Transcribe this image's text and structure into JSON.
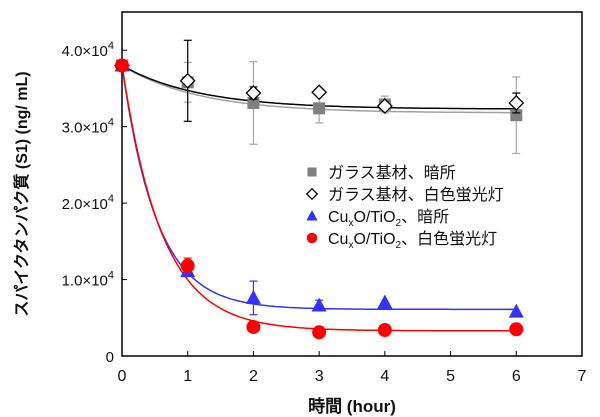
{
  "chart_data": {
    "type": "scatter",
    "xlabel": "時間 (hour)",
    "ylabel": "スパイクタンパク質 (S1)  (ng/ mL)",
    "xlim": [
      0,
      7
    ],
    "ylim": [
      0,
      45000
    ],
    "xticks": [
      0,
      1,
      2,
      3,
      4,
      5,
      6,
      7
    ],
    "yticks": [
      {
        "value": 0,
        "label": "0"
      },
      {
        "value": 10000,
        "label": "1.0×10",
        "exp": "4"
      },
      {
        "value": 20000,
        "label": "2.0×10",
        "exp": "4"
      },
      {
        "value": 30000,
        "label": "3.0×10",
        "exp": "4"
      },
      {
        "value": 40000,
        "label": "4.0×10",
        "exp": "4"
      }
    ],
    "grid": false,
    "legend_placement": "center-right",
    "series": [
      {
        "name": "ガラス基材、暗所",
        "marker": "square",
        "color": "#808080",
        "fit_color": "#a0a0a0",
        "x": [
          0,
          1,
          2,
          3,
          4,
          6
        ],
        "y": [
          38000,
          35800,
          33100,
          32400,
          32900,
          31500
        ],
        "err": [
          0,
          2600,
          5400,
          1900,
          1100,
          5000
        ],
        "fit": {
          "plateau": 31800,
          "start": 38000,
          "rate": 0.85
        }
      },
      {
        "name": "ガラス基材、白色蛍光灯",
        "marker": "diamond",
        "color": "#000000",
        "fit_color": "#000000",
        "x": [
          0,
          1,
          2,
          3,
          4,
          6
        ],
        "y": [
          38000,
          36000,
          34400,
          34500,
          32700,
          33100
        ],
        "err": [
          0,
          5300,
          800,
          0,
          500,
          1300
        ],
        "fit": {
          "plateau": 32300,
          "start": 38000,
          "rate": 0.85
        }
      },
      {
        "name": "CuxO/TiO2、暗所",
        "name_parts": [
          "Cu",
          "x",
          "O/TiO",
          "2",
          "、暗所"
        ],
        "marker": "triangle",
        "color": "#3333ff",
        "fit_color": "#3333ff",
        "x": [
          0,
          1,
          2,
          3,
          4,
          6
        ],
        "y": [
          38000,
          11100,
          7600,
          6600,
          7000,
          5800
        ],
        "err": [
          0,
          0,
          2200,
          700,
          0,
          0
        ],
        "fit": {
          "plateau": 6100,
          "start": 38000,
          "rate": 1.9
        }
      },
      {
        "name": "CuxO/TiO2、白色蛍光灯",
        "name_parts": [
          "Cu",
          "x",
          "O/TiO",
          "2",
          "、白色蛍光灯"
        ],
        "marker": "circle",
        "color": "#ff0000",
        "fit_color": "#ff0000",
        "x": [
          0,
          1,
          2,
          3,
          4,
          6
        ],
        "y": [
          38000,
          11800,
          3800,
          3100,
          3400,
          3500
        ],
        "err": [
          0,
          1000,
          0,
          0,
          0,
          0
        ],
        "fit": {
          "plateau": 3300,
          "start": 38000,
          "rate": 1.65
        }
      }
    ]
  }
}
